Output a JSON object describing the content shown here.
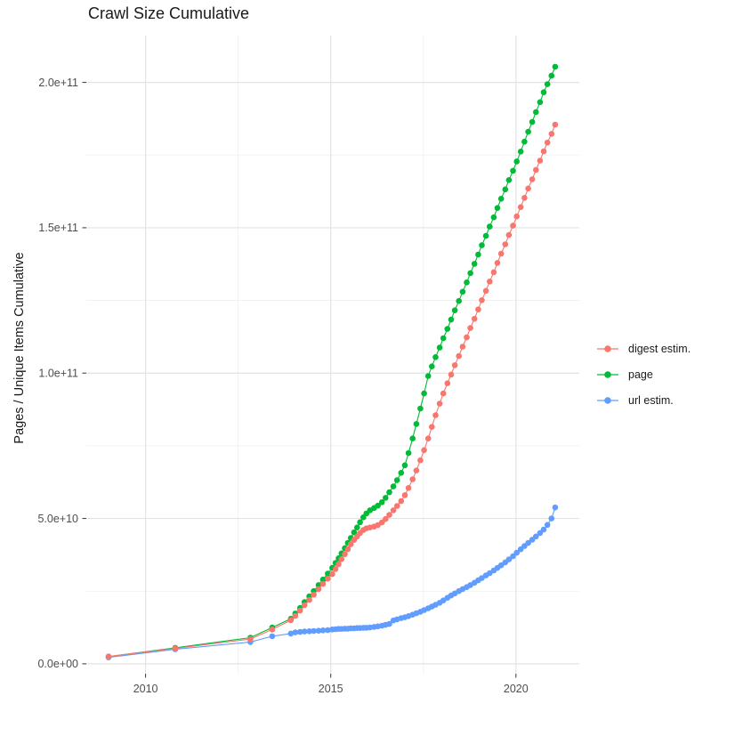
{
  "header": {
    "title": "Crawl Size Cumulative"
  },
  "chart_data": {
    "type": "line",
    "title": "Crawl Size Cumulative",
    "xlabel": "",
    "ylabel": "Pages / Unique Items Cumulative",
    "y_unit": "pages / unique items, values in billions (1e9)",
    "grid": true,
    "legend_position": "right",
    "xlim": [
      2008.4,
      2021.71
    ],
    "ylim_e9": [
      -3.4,
      216.1
    ],
    "x_ticks": [
      2010,
      2015,
      2020
    ],
    "x_tick_labels": [
      "2010",
      "2015",
      "2020"
    ],
    "x_minor_ticks": [
      2012.5,
      2017.5
    ],
    "y_ticks_e9": [
      0,
      50,
      100,
      150,
      200
    ],
    "y_tick_labels": [
      "0.0e+00",
      "5.0e+10",
      "1.0e+11",
      "1.5e+11",
      "2.0e+11"
    ],
    "y_minor_ticks_e9": [
      25,
      75,
      125,
      175
    ],
    "colors": {
      "digest": "#F8766D",
      "page": "#00BA38",
      "url": "#619CFF"
    },
    "grid_major_color": "#e3e3e3",
    "grid_minor_color": "#efefef",
    "tick_color": "#333333",
    "tick_label_color": "#4d4d4d",
    "z_order": [
      1,
      2,
      0
    ],
    "x": [
      2009.0,
      2010.8,
      2012.83,
      2013.42,
      2013.92,
      2014.04,
      2014.17,
      2014.29,
      2014.42,
      2014.54,
      2014.67,
      2014.79,
      2014.92,
      2015.04,
      2015.13,
      2015.21,
      2015.29,
      2015.38,
      2015.46,
      2015.54,
      2015.63,
      2015.71,
      2015.79,
      2015.88,
      2015.96,
      2016.06,
      2016.17,
      2016.27,
      2016.38,
      2016.48,
      2016.58,
      2016.69,
      2016.79,
      2016.9,
      2017.0,
      2017.1,
      2017.21,
      2017.31,
      2017.42,
      2017.52,
      2017.63,
      2017.73,
      2017.83,
      2017.94,
      2018.04,
      2018.15,
      2018.25,
      2018.35,
      2018.46,
      2018.56,
      2018.67,
      2018.77,
      2018.88,
      2018.98,
      2019.08,
      2019.19,
      2019.29,
      2019.4,
      2019.5,
      2019.6,
      2019.71,
      2019.81,
      2019.92,
      2020.02,
      2020.13,
      2020.23,
      2020.33,
      2020.44,
      2020.54,
      2020.65,
      2020.75,
      2020.85,
      2020.96,
      2021.06
    ],
    "series": [
      {
        "name": "digest estim.",
        "color": "#F8766D",
        "y_e9": [
          2.5,
          5.3,
          8.5,
          11.8,
          15.0,
          16.5,
          18.3,
          20.2,
          22.0,
          23.8,
          25.7,
          27.5,
          29.3,
          30.9,
          32.6,
          34.3,
          36.0,
          37.7,
          39.4,
          41.1,
          42.6,
          43.8,
          45.0,
          46.0,
          46.6,
          46.9,
          47.2,
          47.7,
          48.6,
          49.8,
          51.2,
          52.8,
          54.3,
          56.0,
          58.0,
          60.5,
          63.5,
          66.5,
          70.0,
          73.5,
          77.5,
          81.5,
          85.5,
          89.5,
          93.0,
          96.5,
          99.5,
          102.7,
          105.9,
          109.1,
          112.3,
          115.5,
          118.7,
          121.9,
          125.1,
          128.3,
          131.5,
          134.7,
          137.9,
          141.1,
          144.3,
          147.5,
          150.7,
          153.9,
          157.1,
          160.3,
          163.5,
          166.7,
          169.9,
          173.1,
          176.3,
          179.3,
          182.3,
          185.5
        ]
      },
      {
        "name": "page",
        "color": "#00BA38",
        "y_e9": [
          2.5,
          5.5,
          9.0,
          12.5,
          15.5,
          17.3,
          19.2,
          21.2,
          23.2,
          25.0,
          27.1,
          29.0,
          31.0,
          33.0,
          34.7,
          36.3,
          38.0,
          39.8,
          41.6,
          43.3,
          45.2,
          46.9,
          48.7,
          50.4,
          51.7,
          52.8,
          53.6,
          54.4,
          55.6,
          57.1,
          59.0,
          61.0,
          63.2,
          65.7,
          68.3,
          72.5,
          77.5,
          82.5,
          87.8,
          93.0,
          99.0,
          102.3,
          105.5,
          108.8,
          112.0,
          115.2,
          118.4,
          121.6,
          124.8,
          128.0,
          131.2,
          134.4,
          137.6,
          140.8,
          144.0,
          147.2,
          150.4,
          153.6,
          156.8,
          160.0,
          163.2,
          166.4,
          169.6,
          172.8,
          176.2,
          179.6,
          183.0,
          186.4,
          189.8,
          193.2,
          196.6,
          199.4,
          202.3,
          205.4
        ]
      },
      {
        "name": "url estim.",
        "color": "#619CFF",
        "y_e9": [
          2.2,
          5.0,
          7.5,
          9.5,
          10.4,
          10.8,
          11.0,
          11.1,
          11.2,
          11.3,
          11.4,
          11.5,
          11.6,
          11.8,
          11.9,
          12.0,
          12.0,
          12.1,
          12.1,
          12.2,
          12.2,
          12.3,
          12.3,
          12.4,
          12.4,
          12.5,
          12.7,
          12.9,
          13.1,
          13.4,
          13.7,
          14.9,
          15.3,
          15.7,
          16.0,
          16.4,
          16.9,
          17.4,
          17.9,
          18.5,
          19.1,
          19.7,
          20.3,
          21.0,
          21.8,
          22.7,
          23.5,
          24.2,
          25.0,
          25.7,
          26.4,
          27.1,
          27.9,
          28.7,
          29.5,
          30.4,
          31.2,
          32.1,
          33.0,
          33.9,
          34.9,
          35.9,
          37.0,
          38.2,
          39.4,
          40.5,
          41.6,
          42.7,
          43.8,
          45.0,
          46.2,
          47.8,
          50.0,
          53.8
        ]
      }
    ],
    "legend": [
      {
        "label": "digest estim.",
        "color": "#F8766D"
      },
      {
        "label": "page",
        "color": "#00BA38"
      },
      {
        "label": "url estim.",
        "color": "#619CFF"
      }
    ]
  }
}
